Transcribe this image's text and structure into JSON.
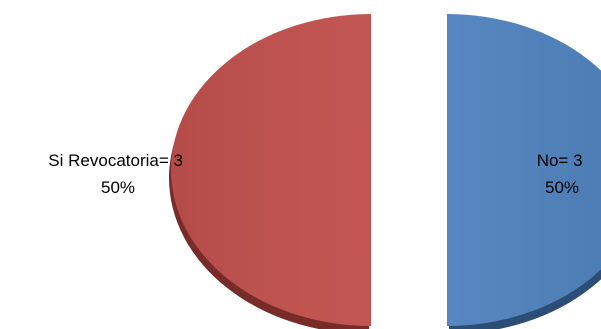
{
  "chart_data": {
    "type": "pie",
    "style": "3d-exploded",
    "legend": "none",
    "slices": [
      {
        "name": "No",
        "value": 3,
        "percent": "50%",
        "label": "No= 3",
        "color": "#4f81bd",
        "side_color": "#2c4d75"
      },
      {
        "name": "Si Revocatoria",
        "value": 3,
        "percent": "50%",
        "label": "Si Revocatoria= 3",
        "color": "#c0504d",
        "side_color": "#772c2a"
      }
    ]
  }
}
